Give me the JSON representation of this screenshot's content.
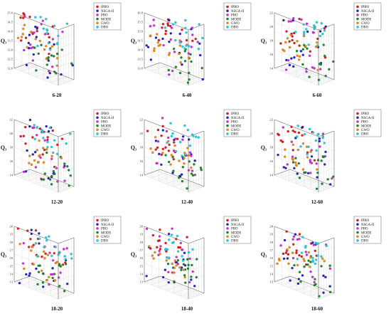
{
  "legend_items": [
    {
      "name": "IPBO",
      "color": "#e41a1c"
    },
    {
      "name": "NSGA-II",
      "color": "#2222cc"
    },
    {
      "name": "PBO",
      "color": "#d82bd8"
    },
    {
      "name": "MODE",
      "color": "#1b8a2a"
    },
    {
      "name": "GWO",
      "color": "#ee8a14"
    },
    {
      "name": "DBO",
      "color": "#22d0e0"
    }
  ],
  "chart_data": [
    {
      "type": "scatter",
      "title": "6-20",
      "zlabel": "Q₃",
      "zticks": [
        "15.0",
        "14.5",
        "14.0",
        "13.5",
        "13.0",
        "12.5",
        "12.0"
      ],
      "zlim": [
        12.0,
        15.0
      ],
      "seed": 11
    },
    {
      "type": "scatter",
      "title": "6-40",
      "zlabel": "Q₃",
      "zticks": [
        "16.0",
        "15.5",
        "15.0",
        "14.5",
        "14.0",
        "13.5",
        "13.0"
      ],
      "zlim": [
        13.0,
        16.0
      ],
      "seed": 23
    },
    {
      "type": "scatter",
      "title": "6-60",
      "zlabel": "Q₃",
      "zticks": [
        "22",
        "20",
        "18",
        "16",
        "14"
      ],
      "zlim": [
        14,
        22
      ],
      "seed": 37
    },
    {
      "type": "scatter",
      "title": "12-20",
      "zlabel": "Q₃",
      "zticks": [
        "22",
        "20",
        "18",
        "16",
        "14"
      ],
      "zlim": [
        14,
        22
      ],
      "seed": 41
    },
    {
      "type": "scatter",
      "title": "12-40",
      "zlabel": "Q₃",
      "zticks": [
        "22",
        "20",
        "18",
        "16",
        "14"
      ],
      "zlim": [
        14,
        22
      ],
      "seed": 53
    },
    {
      "type": "scatter",
      "title": "12-60",
      "zlabel": "Q₃",
      "zticks": [
        "22",
        "20",
        "18",
        "16",
        "14"
      ],
      "zlim": [
        14,
        22
      ],
      "seed": 67
    },
    {
      "type": "scatter",
      "title": "18-20",
      "zlabel": "Q₃",
      "zticks": [
        "20",
        "19",
        "18",
        "17",
        "16",
        "15",
        "14",
        "13"
      ],
      "zlim": [
        13,
        20
      ],
      "seed": 71
    },
    {
      "type": "scatter",
      "title": "18-40",
      "zlabel": "Q₃",
      "zticks": [
        "20",
        "19",
        "18",
        "17",
        "16",
        "15",
        "14",
        "13"
      ],
      "zlim": [
        13,
        20
      ],
      "seed": 83
    },
    {
      "type": "scatter",
      "title": "18-60",
      "zlabel": "Q₃",
      "zticks": [
        "20",
        "19",
        "18",
        "17",
        "16",
        "15",
        "14",
        "13"
      ],
      "zlim": [
        13,
        20
      ],
      "seed": 97
    }
  ]
}
